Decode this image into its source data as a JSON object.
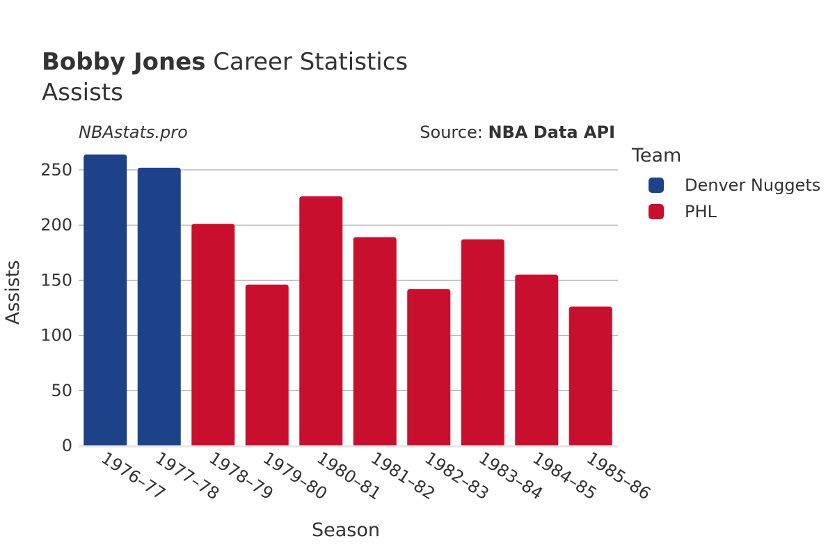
{
  "header": {
    "title_bold": "Bobby Jones",
    "title_rest": " Career Statistics",
    "subtitle": "Assists",
    "watermark": "NBAstats.pro",
    "source_prefix": "Source: ",
    "source_name": "NBA Data API"
  },
  "legend": {
    "title": "Team",
    "items": [
      {
        "label": "Denver Nuggets",
        "color": "#1d4289"
      },
      {
        "label": "PHL",
        "color": "#c8102e"
      }
    ]
  },
  "chart_data": {
    "type": "bar",
    "title": "Bobby Jones Career Statistics",
    "subtitle": "Assists",
    "xlabel": "Season",
    "ylabel": "Assists",
    "ylim": [
      0,
      270
    ],
    "yticks": [
      0,
      50,
      100,
      150,
      200,
      250
    ],
    "grid": true,
    "legend_position": "right",
    "categories": [
      "1976–77",
      "1977–78",
      "1978–79",
      "1979–80",
      "1980–81",
      "1981–82",
      "1982–83",
      "1983–84",
      "1984–85",
      "1985–86"
    ],
    "values": [
      264,
      252,
      201,
      146,
      226,
      189,
      142,
      187,
      155,
      126
    ],
    "teams": [
      "Denver Nuggets",
      "Denver Nuggets",
      "PHL",
      "PHL",
      "PHL",
      "PHL",
      "PHL",
      "PHL",
      "PHL",
      "PHL"
    ]
  }
}
